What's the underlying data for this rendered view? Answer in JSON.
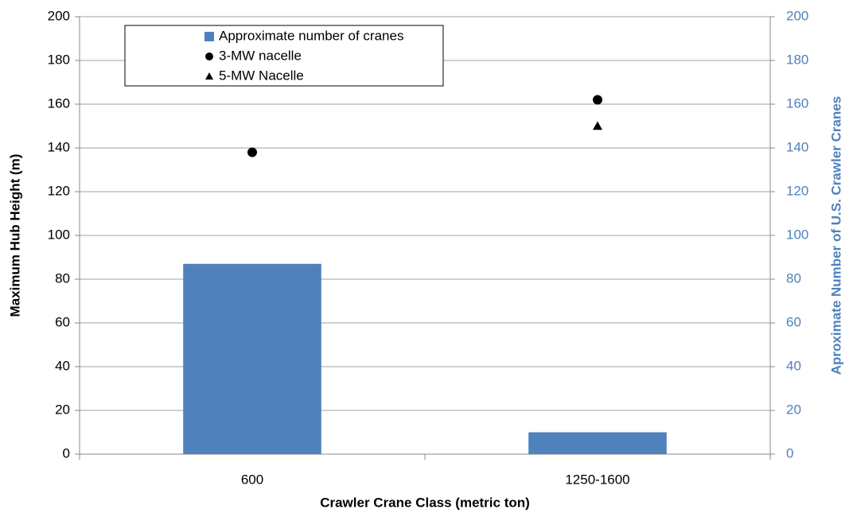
{
  "chart_data": {
    "type": "bar",
    "categories": [
      "600",
      "1250-1600"
    ],
    "x_label": "Crawler Crane Class (metric ton)",
    "y_label": "Maximum Hub Height (m)",
    "y2_label": "Aproximate Number of U.S. Crawler Cranes",
    "ylim": [
      0,
      200
    ],
    "yticks": [
      0,
      20,
      40,
      60,
      80,
      100,
      120,
      140,
      160,
      180,
      200
    ],
    "y2lim": [
      0,
      200
    ],
    "y2ticks": [
      0,
      20,
      40,
      60,
      80,
      100,
      120,
      140,
      160,
      180,
      200
    ],
    "y2_color": "#4f81bd",
    "grid": true,
    "legend": "upper left",
    "series": [
      {
        "name": "Approximate number of cranes",
        "type": "bar",
        "axis": "y2",
        "color": "#4f81bd",
        "values": [
          87,
          10
        ]
      },
      {
        "name": "3-MW nacelle",
        "type": "scatter",
        "marker": "circle",
        "color": "#000000",
        "values": [
          138,
          162
        ]
      },
      {
        "name": "5-MW Nacelle",
        "type": "scatter",
        "marker": "triangle",
        "color": "#000000",
        "values": [
          null,
          150
        ]
      }
    ]
  }
}
